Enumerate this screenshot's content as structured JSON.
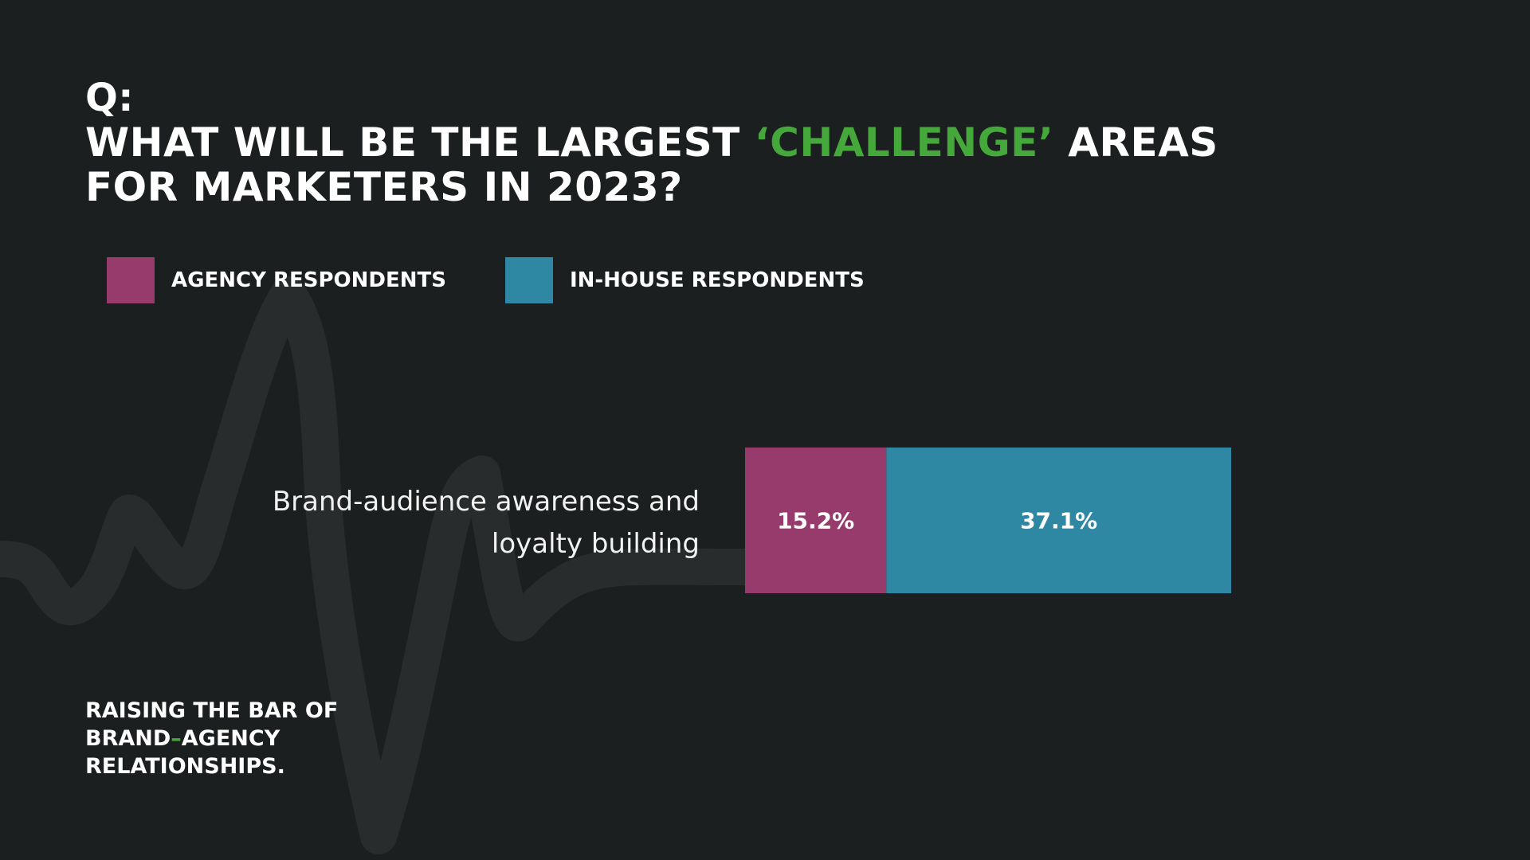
{
  "question": {
    "prefix": "Q:",
    "title_before": "WHAT WILL BE THE LARGEST ",
    "title_accent": "‘CHALLENGE’",
    "title_after": " AREAS FOR MARKETERS IN 2023?"
  },
  "colors": {
    "background": "#1c1f1f",
    "accent": "#45a83a",
    "agency": "#963b6c",
    "in_house": "#2e88a4",
    "wave": "#282c2c"
  },
  "chart_data": {
    "type": "bar",
    "orientation": "horizontal",
    "stacked": true,
    "categories": [
      "Brand-audience awareness and loyalty building"
    ],
    "series": [
      {
        "name": "AGENCY RESPONDENTS",
        "values": [
          15.2
        ],
        "labels": [
          "15.2%"
        ]
      },
      {
        "name": "IN-HOUSE RESPONDENTS",
        "values": [
          37.1
        ],
        "labels": [
          "37.1%"
        ]
      }
    ],
    "legend_position": "top-left",
    "grid": false
  },
  "footer": {
    "line1": "RAISING THE BAR OF",
    "line2_a": "BRAND",
    "line2_dash": "–",
    "line2_b": "AGENCY",
    "line3": "RELATIONSHIPS."
  }
}
